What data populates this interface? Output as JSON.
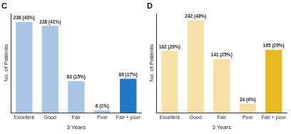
{
  "chart_data": [
    {
      "type": "bar",
      "title": "C",
      "categories": [
        "Excellent",
        "Good",
        "Fair",
        "Poor",
        "Fair + poor"
      ],
      "values": [
        238,
        228,
        83,
        6,
        89
      ],
      "value_labels": [
        "238 (43%)",
        "228 (41%)",
        "83 (15%)",
        "6 (1%)",
        "89 (17%)"
      ],
      "colors": [
        "#a9c5e8",
        "#a9c5e8",
        "#a9c5e8",
        "#a9c5e8",
        "#1f78c1"
      ],
      "x_label": "3 Years",
      "y_label": "No. of Patients",
      "ylim": [
        0,
        260
      ],
      "grid": false,
      "data_labels": true,
      "tick_labels": "x"
    },
    {
      "type": "bar",
      "title": "D",
      "categories": [
        "Excellent",
        "Good",
        "Fair",
        "Poor",
        "Fair + poor"
      ],
      "values": [
        162,
        242,
        141,
        24,
        165
      ],
      "value_labels": [
        "162 (29%)",
        "242 (43%)",
        "141 (25%)",
        "24 (4%)",
        "165 (29%)"
      ],
      "colors": [
        "#f6e0a6",
        "#f6e0a6",
        "#f6e0a6",
        "#f6e0a6",
        "#e8b923"
      ],
      "x_label": "3 Years",
      "y_label": "No. of Patients",
      "ylim": [
        0,
        260
      ],
      "grid": false,
      "data_labels": true,
      "tick_labels": "x"
    }
  ]
}
